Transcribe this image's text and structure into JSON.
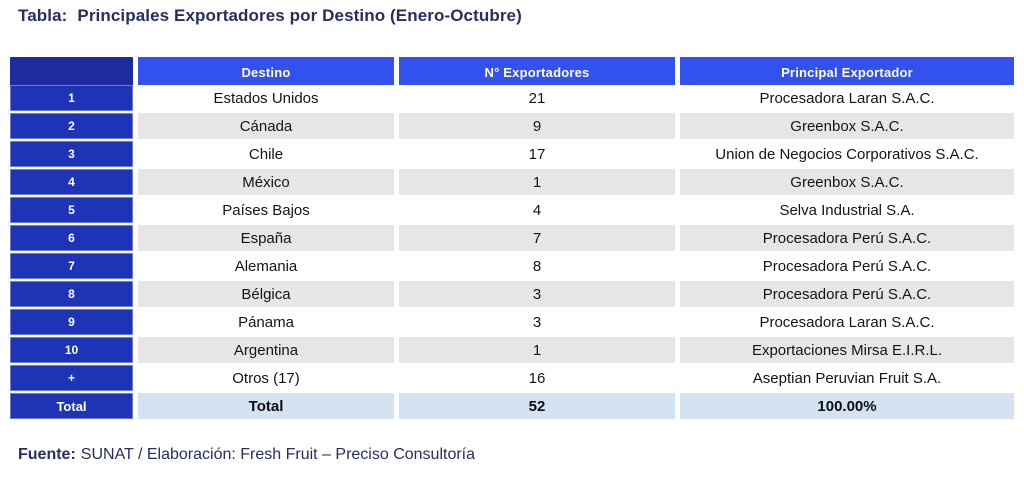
{
  "title": {
    "label": "Tabla:",
    "text": "Principales Exportadores por Destino (Enero-Octubre)"
  },
  "table": {
    "headers": [
      "",
      "Destino",
      "N° Exportadores",
      "Principal Exportador"
    ],
    "rows": [
      {
        "num": "1",
        "destino": "Estados Unidos",
        "exportadores": "21",
        "principal": "Procesadora Laran S.A.C."
      },
      {
        "num": "2",
        "destino": "Cánada",
        "exportadores": "9",
        "principal": "Greenbox S.A.C."
      },
      {
        "num": "3",
        "destino": "Chile",
        "exportadores": "17",
        "principal": "Union de Negocios Corporativos S.A.C."
      },
      {
        "num": "4",
        "destino": "México",
        "exportadores": "1",
        "principal": "Greenbox S.A.C."
      },
      {
        "num": "5",
        "destino": "Países Bajos",
        "exportadores": "4",
        "principal": "Selva Industrial S.A."
      },
      {
        "num": "6",
        "destino": "España",
        "exportadores": "7",
        "principal": "Procesadora Perú S.A.C."
      },
      {
        "num": "7",
        "destino": "Alemania",
        "exportadores": "8",
        "principal": "Procesadora Perú S.A.C."
      },
      {
        "num": "8",
        "destino": "Bélgica",
        "exportadores": "3",
        "principal": "Procesadora Perú S.A.C."
      },
      {
        "num": "9",
        "destino": "Pánama",
        "exportadores": "3",
        "principal": "Procesadora Laran S.A.C."
      },
      {
        "num": "10",
        "destino": "Argentina",
        "exportadores": "1",
        "principal": "Exportaciones Mirsa E.I.R.L."
      },
      {
        "num": "+",
        "destino": "Otros (17)",
        "exportadores": "16",
        "principal": "Aseptian Peruvian Fruit S.A."
      }
    ],
    "total_row": {
      "num": "Total",
      "destino": "Total",
      "exportadores": "52",
      "principal": "100.00%"
    }
  },
  "footer": {
    "label": "Fuente:",
    "text": "SUNAT / Elaboración: Fresh Fruit – Preciso Consultoría"
  },
  "colors": {
    "title_navy": "#272e62",
    "header_blue": "#3351ef",
    "corner_navy": "#1c2b9d",
    "index_blue": "#1e34b7",
    "stripe_gray": "#e6e6e6",
    "total_light_blue": "#d4e3f2"
  }
}
